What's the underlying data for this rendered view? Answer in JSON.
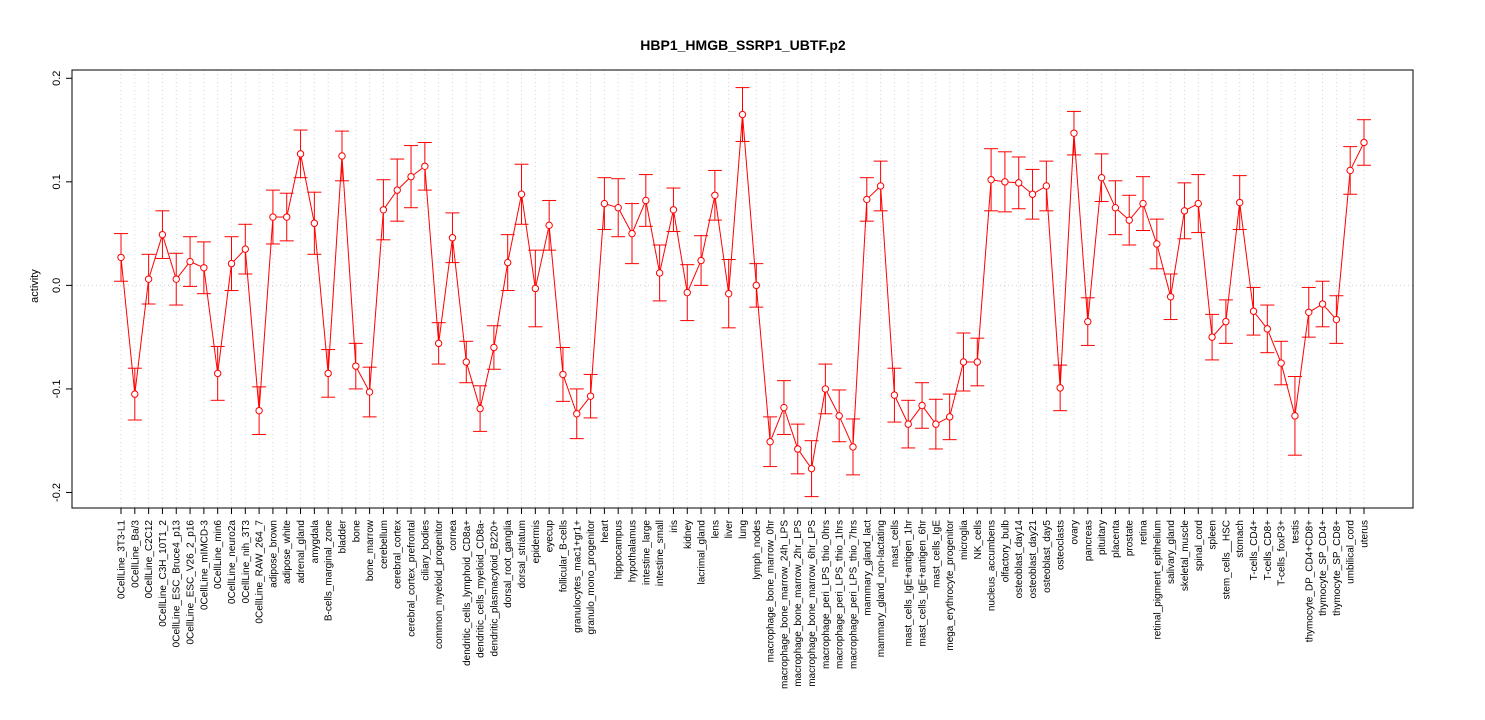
{
  "chart_data": {
    "type": "line",
    "title": "HBP1_HMGB_SSRP1_UBTF.p2",
    "xlabel": "",
    "ylabel": "activity",
    "ylim": [
      -0.215,
      0.208
    ],
    "yticks": [
      -0.2,
      -0.1,
      0.0,
      0.1,
      0.2
    ],
    "ytick_labels": [
      "-0.2",
      "-0.1",
      "0.0",
      "0.1",
      "0.2"
    ],
    "series_color": "#ff0000",
    "grid_color": "#d3d3d3",
    "categories": [
      "0CellLine_3T3-L1",
      "0CellLine_Ba/3",
      "0CellLine_C2C12",
      "0CellLine_C3H_10T1_2",
      "0CellLine_ESC_Bruce4_p13",
      "0CellLine_ESC_V26_2_p16",
      "0CellLine_mIMCD-3",
      "0CellLine_min6",
      "0CellLine_neuro2a",
      "0CellLine_nih_3T3",
      "0CellLine_RAW_264_7",
      "adipose_brown",
      "adipose_white",
      "adrenal_gland",
      "amygdala",
      "B-cells_marginal_zone",
      "bladder",
      "bone",
      "bone_marrow",
      "cerebellum",
      "cerebral_cortex",
      "cerebral_cortex_prefrontal",
      "ciliary_bodies",
      "common_myeloid_progenitor",
      "cornea",
      "dendritic_cells_lymphoid_CD8a+",
      "dendritic_cells_myeloid_CD8a-",
      "dendritic_plasmacytoid_B220+",
      "dorsal_root_ganglia",
      "dorsal_striatum",
      "epidermis",
      "eyecup",
      "follicular_B-cells",
      "granulocytes_mac1+gr1+",
      "granulo_mono_progenitor",
      "heart",
      "hippocampus",
      "hypothalamus",
      "intestine_large",
      "intestine_small",
      "iris",
      "kidney",
      "lacrimal_gland",
      "lens",
      "liver",
      "lung",
      "lymph_nodes",
      "macrophage_bone_marrow_0hr",
      "macrophage_bone_marrow_24h_LPS",
      "macrophage_bone_marrow_2hr_LPS",
      "macrophage_bone_marrow_6hr_LPS",
      "macrophage_peri_LPS_thio_0hrs",
      "macrophage_peri_LPS_thio_1hrs",
      "macrophage_peri_LPS_thio_7hrs",
      "mammary_gland_lact",
      "mammary_gland_non-lactating",
      "mast_cells",
      "mast_cells_IgE+antigen_1hr",
      "mast_cells_IgE+antigen_6hr",
      "mast_cells_IgE",
      "mega_erythrocyte_progenitor",
      "microglia",
      "NK_cells",
      "nucleus_accumbens",
      "olfactory_bulb",
      "osteoblast_day14",
      "osteoblast_day21",
      "osteoblast_day5",
      "osteoclasts",
      "ovary",
      "pancreas",
      "pituitary",
      "placenta",
      "prostate",
      "retina",
      "retinal_pigment_epithelium",
      "salivary_gland",
      "skeletal_muscle",
      "spinal_cord",
      "spleen",
      "stem_cells__HSC",
      "stomach",
      "T-cells_CD4+",
      "T-cells_CD8+",
      "T-cells_foxP3+",
      "testis",
      "thymocyte_DP_CD4+CD8+",
      "thymocyte_SP_CD4+",
      "thymocyte_SP_CD8+",
      "umbilical_cord",
      "uterus"
    ],
    "values": [
      0.027,
      -0.105,
      0.006,
      0.049,
      0.006,
      0.023,
      0.017,
      -0.085,
      0.021,
      0.035,
      -0.121,
      0.066,
      0.066,
      0.127,
      0.06,
      -0.085,
      0.125,
      -0.078,
      -0.103,
      0.073,
      0.092,
      0.105,
      0.115,
      -0.056,
      0.046,
      -0.074,
      -0.119,
      -0.06,
      0.022,
      0.088,
      -0.003,
      0.058,
      -0.086,
      -0.124,
      -0.107,
      0.079,
      0.075,
      0.05,
      0.082,
      0.012,
      0.073,
      -0.007,
      0.024,
      0.087,
      -0.008,
      0.165,
      0.0,
      -0.151,
      -0.118,
      -0.158,
      -0.177,
      -0.1,
      -0.126,
      -0.156,
      0.083,
      0.096,
      -0.106,
      -0.134,
      -0.116,
      -0.134,
      -0.127,
      -0.074,
      -0.074,
      0.102,
      0.1,
      0.099,
      0.088,
      0.096,
      -0.099,
      0.147,
      -0.035,
      0.104,
      0.075,
      0.063,
      0.079,
      0.04,
      -0.011,
      0.072,
      0.079,
      -0.05,
      -0.035,
      0.08,
      -0.025,
      -0.042,
      -0.075,
      -0.126,
      -0.026,
      -0.018,
      -0.033,
      0.111,
      0.138
    ],
    "errors": [
      0.023,
      0.025,
      0.024,
      0.023,
      0.025,
      0.024,
      0.025,
      0.026,
      0.026,
      0.024,
      0.023,
      0.026,
      0.023,
      0.023,
      0.03,
      0.023,
      0.024,
      0.022,
      0.024,
      0.029,
      0.03,
      0.03,
      0.023,
      0.02,
      0.024,
      0.02,
      0.022,
      0.021,
      0.027,
      0.029,
      0.037,
      0.024,
      0.026,
      0.024,
      0.021,
      0.025,
      0.028,
      0.029,
      0.025,
      0.027,
      0.021,
      0.027,
      0.024,
      0.024,
      0.033,
      0.026,
      0.021,
      0.024,
      0.026,
      0.024,
      0.027,
      0.024,
      0.025,
      0.027,
      0.021,
      0.024,
      0.026,
      0.023,
      0.022,
      0.024,
      0.022,
      0.028,
      0.023,
      0.03,
      0.029,
      0.025,
      0.024,
      0.024,
      0.022,
      0.021,
      0.023,
      0.023,
      0.026,
      0.024,
      0.026,
      0.024,
      0.022,
      0.027,
      0.028,
      0.022,
      0.021,
      0.026,
      0.023,
      0.023,
      0.021,
      0.038,
      0.024,
      0.022,
      0.023,
      0.023,
      0.022
    ]
  }
}
